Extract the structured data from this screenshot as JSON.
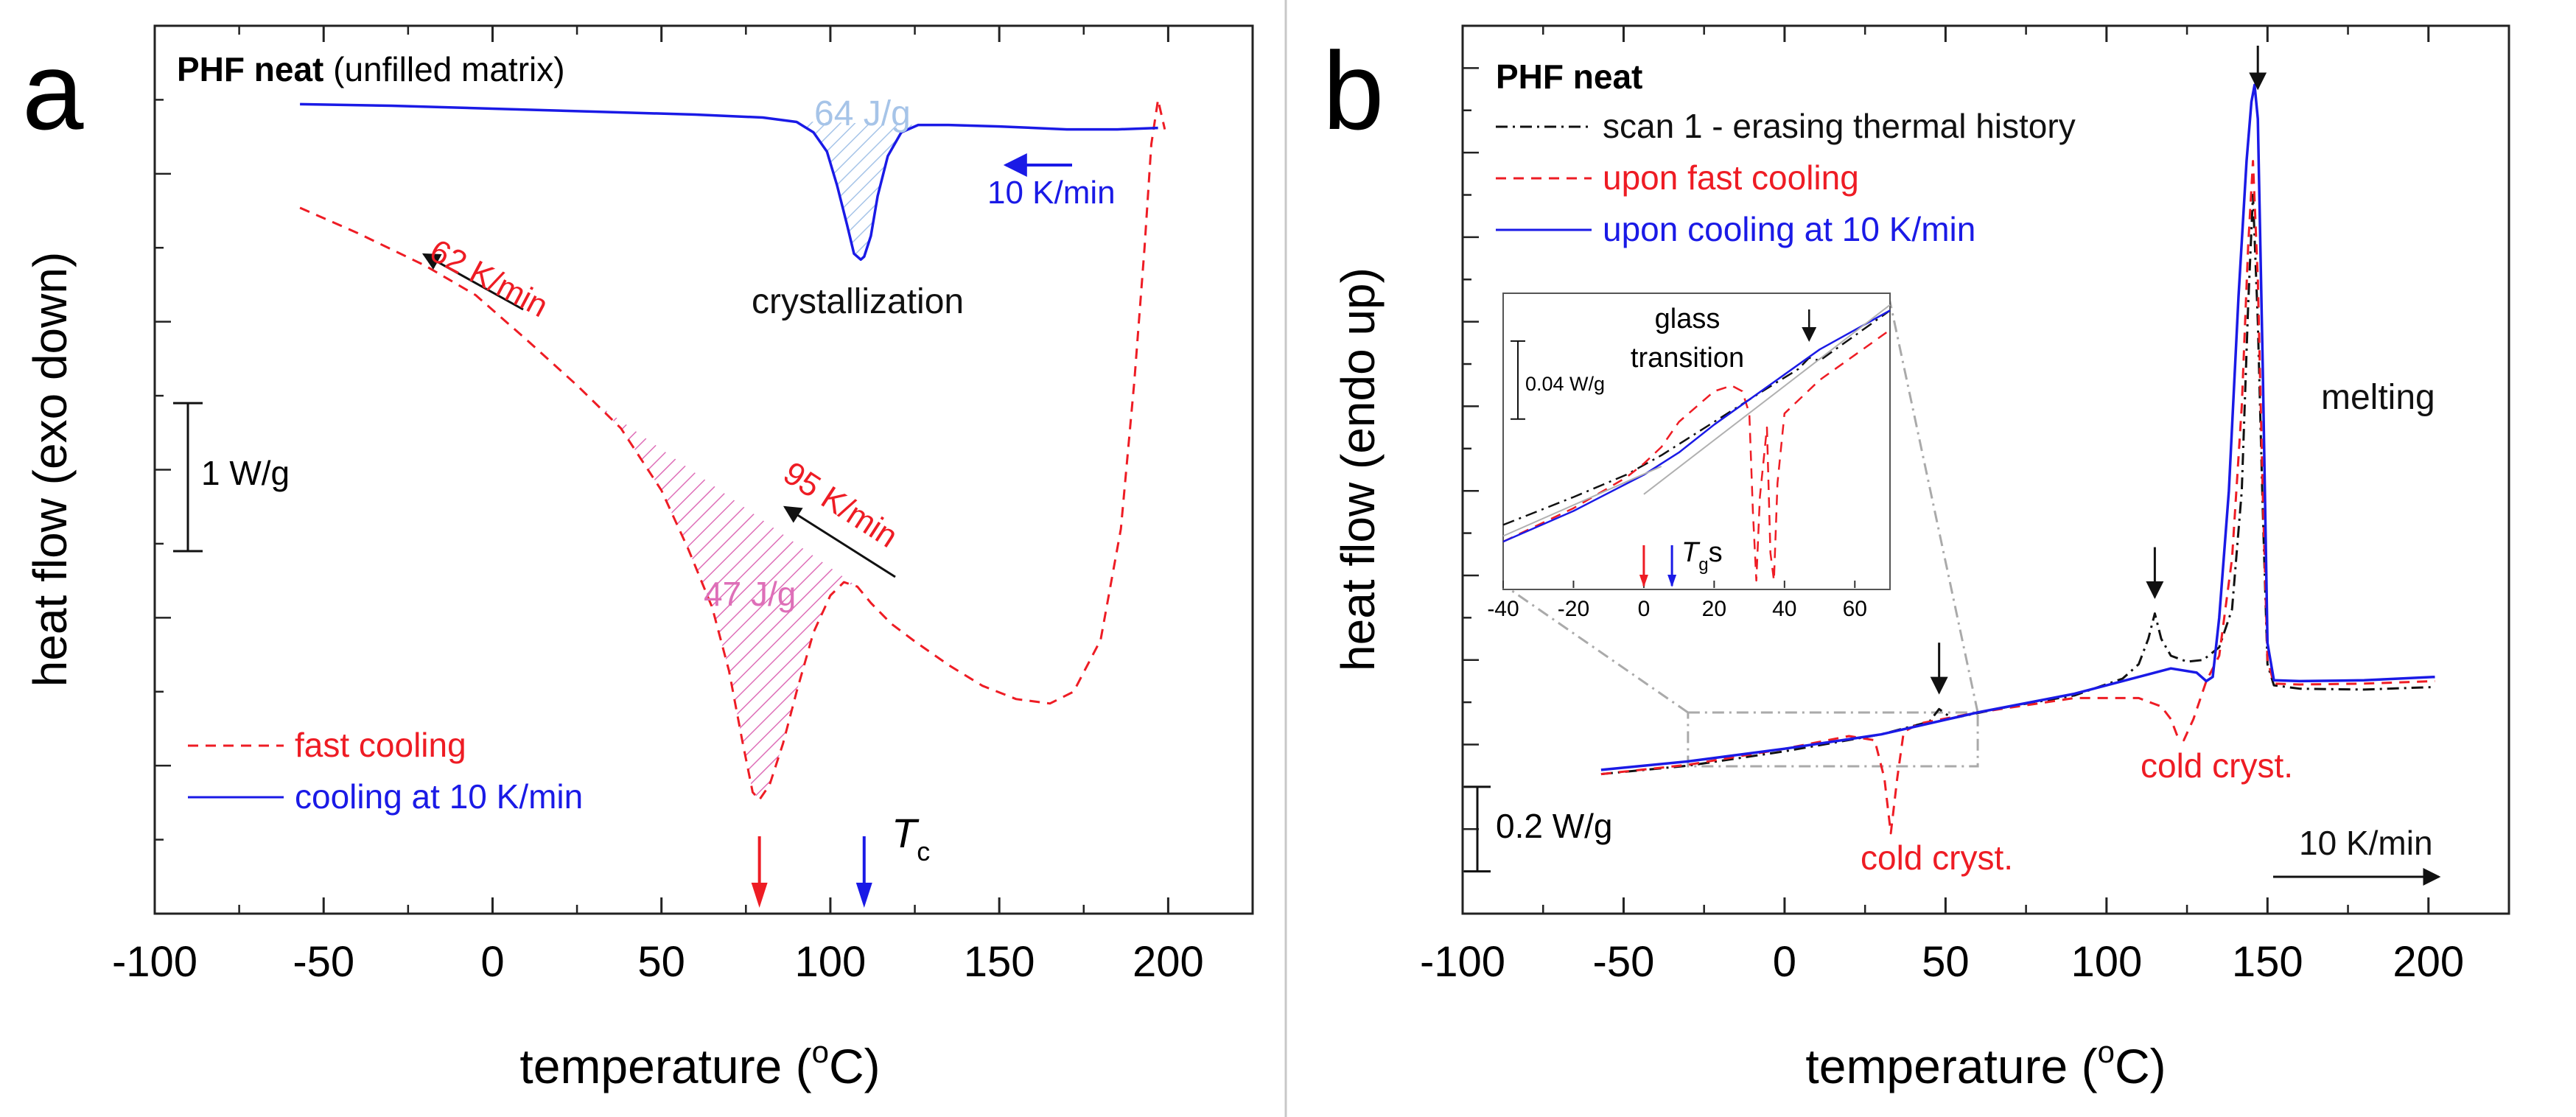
{
  "colors": {
    "red": "#ee1c24",
    "blue": "#1a1ae6",
    "black": "#111111",
    "light_blue": "#a6c4e8",
    "pink": "#de6fb8",
    "gray": "#b0b0b0"
  },
  "chart_data": [
    {
      "panel": "a",
      "type": "line",
      "title_bold": "PHF neat",
      "title_rest": " (unfilled matrix)",
      "xlabel_main": "temperature (",
      "xlabel_sup": "o",
      "xlabel_end": "C)",
      "ylabel": "heat flow (exo down)",
      "xlim": [
        -100,
        225
      ],
      "xticks": [
        -100,
        -50,
        0,
        50,
        100,
        150,
        200
      ],
      "ylim": [
        0,
        6
      ],
      "scalebar_label": "1 W/g",
      "scalebar_range": [
        2.45,
        3.45
      ],
      "series": [
        {
          "name": "fast cooling",
          "style": "dashed",
          "color": "red",
          "x": [
            -57,
            -40,
            -20,
            -5,
            10,
            25,
            38,
            50,
            58,
            65,
            70,
            74,
            77,
            79,
            82,
            86,
            90,
            95,
            100,
            104,
            108,
            112,
            118,
            125,
            135,
            145,
            155,
            165,
            172,
            180,
            186,
            190,
            193,
            195,
            197,
            199
          ],
          "y": [
            4.77,
            4.6,
            4.38,
            4.18,
            3.88,
            3.57,
            3.28,
            2.86,
            2.46,
            2.07,
            1.64,
            1.16,
            0.82,
            0.77,
            0.87,
            1.15,
            1.5,
            1.9,
            2.15,
            2.24,
            2.21,
            2.1,
            1.96,
            1.84,
            1.68,
            1.54,
            1.45,
            1.42,
            1.5,
            1.85,
            2.6,
            3.6,
            4.5,
            5.2,
            5.5,
            5.3
          ]
        },
        {
          "name": "cooling at 10 K/min",
          "style": "solid",
          "color": "blue",
          "x": [
            -57,
            -30,
            0,
            30,
            60,
            80,
            90,
            95,
            99,
            102,
            105,
            107,
            109,
            110,
            112,
            114,
            117,
            121,
            126,
            135,
            150,
            170,
            185,
            197
          ],
          "y": [
            5.47,
            5.46,
            5.44,
            5.42,
            5.4,
            5.38,
            5.35,
            5.28,
            5.15,
            4.92,
            4.65,
            4.46,
            4.42,
            4.44,
            4.58,
            4.85,
            5.12,
            5.28,
            5.33,
            5.33,
            5.32,
            5.3,
            5.3,
            5.31
          ]
        }
      ],
      "hatched_areas": [
        {
          "label": "64 J/g",
          "color": "light_blue",
          "x_range": [
            88,
            126
          ]
        },
        {
          "label": "47 J/g",
          "color": "pink",
          "x_range": [
            30,
            108
          ]
        }
      ],
      "annotations": [
        {
          "text": "62 K/min",
          "color": "red"
        },
        {
          "text": "95 K/min",
          "color": "red"
        },
        {
          "text": "10 K/min",
          "color": "blue"
        },
        {
          "text": "crystallization",
          "color": "black"
        }
      ],
      "markers": [
        {
          "x": 79,
          "color": "red"
        },
        {
          "x": 110,
          "color": "blue"
        }
      ],
      "tc_label_main": "T",
      "tc_label_sub": "c",
      "legend": [
        {
          "label": "fast cooling",
          "style": "dashed",
          "color": "red"
        },
        {
          "label": "cooling at 10 K/min",
          "style": "solid",
          "color": "blue"
        }
      ]
    },
    {
      "panel": "b",
      "type": "line",
      "title_bold": "PHF neat",
      "xlabel_main": "temperature (",
      "xlabel_sup": "o",
      "xlabel_end": "C)",
      "ylabel": "heat flow (endo up)",
      "xlim": [
        -100,
        225
      ],
      "xticks": [
        -100,
        -50,
        0,
        50,
        100,
        150,
        200
      ],
      "ylim": [
        0,
        10.5
      ],
      "scalebar_label": "0.2 W/g",
      "scalebar_range": [
        0.5,
        1.5
      ],
      "series": [
        {
          "name": "scan 1 - erasing thermal history",
          "style": "dashdot",
          "color": "black",
          "x": [
            -57,
            -30,
            0,
            30,
            45,
            48,
            52,
            70,
            90,
            105,
            110,
            113,
            115,
            117,
            120,
            125,
            130,
            135,
            139,
            142,
            144,
            145.5,
            147,
            148.5,
            150,
            152,
            160,
            180,
            202
          ],
          "y": [
            1.65,
            1.75,
            1.92,
            2.12,
            2.27,
            2.42,
            2.31,
            2.45,
            2.58,
            2.78,
            2.95,
            3.25,
            3.55,
            3.25,
            3.05,
            2.98,
            3.0,
            3.15,
            3.6,
            5.0,
            7.2,
            8.5,
            7.0,
            4.8,
            2.95,
            2.7,
            2.66,
            2.65,
            2.68
          ]
        },
        {
          "name": "upon fast cooling",
          "style": "dashed",
          "color": "red",
          "x": [
            -57,
            -30,
            0,
            20,
            28,
            31,
            33,
            35,
            37,
            42,
            60,
            90,
            110,
            117,
            120,
            122,
            124,
            127,
            131,
            135,
            139,
            142,
            144,
            145.5,
            147,
            148.5,
            150,
            152,
            160,
            180,
            202
          ],
          "y": [
            1.65,
            1.76,
            1.95,
            2.1,
            2.05,
            1.6,
            0.95,
            1.6,
            2.15,
            2.25,
            2.38,
            2.55,
            2.55,
            2.45,
            2.3,
            2.1,
            2.05,
            2.3,
            2.75,
            3.05,
            4.2,
            6.0,
            7.9,
            8.9,
            7.5,
            5.0,
            3.0,
            2.72,
            2.71,
            2.72,
            2.75
          ]
        },
        {
          "name": "upon cooling at 10 K/min",
          "style": "solid",
          "color": "blue",
          "x": [
            -57,
            -30,
            0,
            30,
            60,
            90,
            110,
            120,
            128,
            131,
            133,
            135,
            138,
            141,
            143.5,
            145,
            146,
            147,
            148.5,
            150,
            152,
            160,
            180,
            202
          ],
          "y": [
            1.7,
            1.8,
            1.95,
            2.12,
            2.38,
            2.6,
            2.8,
            2.9,
            2.85,
            2.75,
            2.8,
            3.5,
            5.0,
            7.3,
            8.9,
            9.6,
            9.8,
            9.4,
            6.5,
            3.2,
            2.76,
            2.75,
            2.76,
            2.8
          ]
        }
      ],
      "annotations": [
        {
          "text": "melting",
          "color": "black"
        },
        {
          "text": "cold cryst.",
          "color": "red"
        },
        {
          "text": "cold cryst.",
          "color": "red"
        },
        {
          "text": "10 K/min",
          "color": "black"
        }
      ],
      "arrows_x": [
        48,
        115,
        147
      ],
      "legend": [
        {
          "label": "scan 1 - erasing thermal history",
          "style": "dashdot",
          "color": "black"
        },
        {
          "label": "upon fast cooling",
          "style": "dashed",
          "color": "red"
        },
        {
          "label": "upon cooling at 10 K/min",
          "style": "solid",
          "color": "blue"
        }
      ],
      "zoom_box": {
        "x_range": [
          -30,
          60
        ]
      },
      "inset": {
        "type": "line",
        "xlim": [
          -40,
          70
        ],
        "xticks": [
          -40,
          -20,
          0,
          20,
          40,
          60
        ],
        "ylim": [
          0,
          1
        ],
        "scalebar_label": "0.04 W/g",
        "scalebar_range": [
          0.58,
          0.86
        ],
        "glass_label_1": "glass",
        "glass_label_2": "transition",
        "tg_main": "T",
        "tg_sub": "g",
        "tg_suffix": "s",
        "markers": [
          {
            "x": 0,
            "color": "red"
          },
          {
            "x": 8,
            "color": "blue"
          }
        ],
        "arrow_x": 47,
        "series": [
          {
            "name": "black",
            "style": "dashdot",
            "color": "black",
            "x": [
              -40,
              -20,
              -5,
              5,
              20,
              35,
              44,
              47,
              50,
              60,
              70
            ],
            "y": [
              0.2,
              0.3,
              0.38,
              0.45,
              0.57,
              0.69,
              0.76,
              0.8,
              0.79,
              0.88,
              0.97
            ]
          },
          {
            "name": "red",
            "style": "dashed",
            "color": "red",
            "x": [
              -40,
              -20,
              -5,
              0,
              5,
              10,
              20,
              25,
              28,
              30,
              31,
              32,
              33,
              35,
              36,
              37,
              38,
              40,
              50,
              60,
              70
            ],
            "y": [
              0.14,
              0.26,
              0.37,
              0.42,
              0.48,
              0.57,
              0.68,
              0.7,
              0.68,
              0.6,
              0.25,
              0.0,
              0.3,
              0.55,
              0.1,
              0.0,
              0.35,
              0.6,
              0.72,
              0.81,
              0.9
            ]
          },
          {
            "name": "blue",
            "style": "solid",
            "color": "blue",
            "x": [
              -40,
              -20,
              0,
              10,
              20,
              30,
              40,
              50,
              60,
              70
            ],
            "y": [
              0.14,
              0.25,
              0.38,
              0.46,
              0.56,
              0.65,
              0.74,
              0.83,
              0.9,
              0.97
            ]
          },
          {
            "name": "tangent1",
            "style": "solid",
            "color": "gray",
            "x": [
              -40,
              5
            ],
            "y": [
              0.16,
              0.41
            ]
          },
          {
            "name": "tangent2",
            "style": "solid",
            "color": "gray",
            "x": [
              0,
              70
            ],
            "y": [
              0.31,
              0.99
            ]
          }
        ]
      }
    }
  ],
  "panel_letters": [
    "a",
    "b"
  ]
}
